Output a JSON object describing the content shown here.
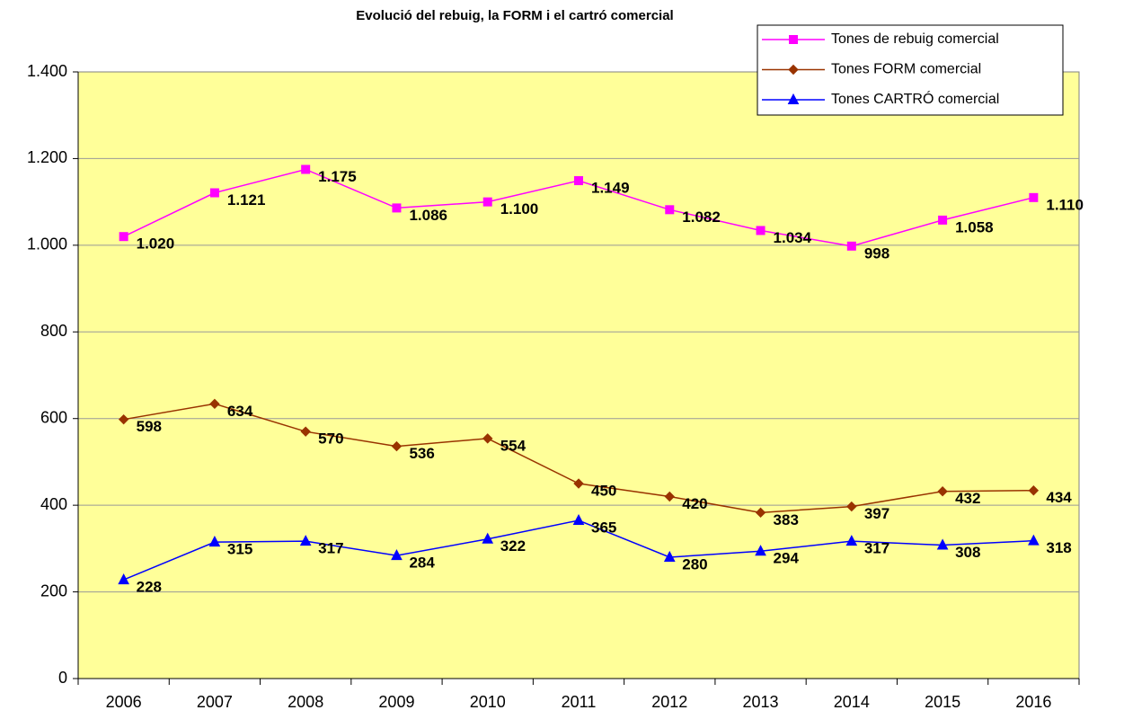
{
  "chart_data": {
    "type": "line",
    "title": "Evolució del rebuig, la FORM i el cartró comercial",
    "categories": [
      "2006",
      "2007",
      "2008",
      "2009",
      "2010",
      "2011",
      "2012",
      "2013",
      "2014",
      "2015",
      "2016"
    ],
    "series": [
      {
        "name": "Tones de rebuig comercial",
        "color": "#ff00ff",
        "marker": "square",
        "values": [
          1020,
          1121,
          1175,
          1086,
          1100,
          1149,
          1082,
          1034,
          998,
          1058,
          1110
        ],
        "value_labels": [
          "1.020",
          "1.121",
          "1.175",
          "1.086",
          "1.100",
          "1.149",
          "1.082",
          "1.034",
          "998",
          "1.058",
          "1.110"
        ]
      },
      {
        "name": "Tones FORM comercial",
        "color": "#993300",
        "marker": "diamond",
        "values": [
          598,
          634,
          570,
          536,
          554,
          450,
          420,
          383,
          397,
          432,
          434
        ]
      },
      {
        "name": "Tones CARTRÓ comercial",
        "color": "#0000ff",
        "marker": "triangle",
        "values": [
          228,
          315,
          317,
          284,
          322,
          365,
          280,
          294,
          317,
          308,
          318
        ]
      }
    ],
    "ylim": [
      0,
      1400
    ],
    "yticks": [
      0,
      200,
      400,
      600,
      800,
      {
        "value": 1000,
        "label": "1.000"
      },
      {
        "value": 1200,
        "label": "1.200"
      },
      {
        "value": 1400,
        "label": "1.400"
      }
    ],
    "grid": true,
    "legend": "top-right"
  }
}
